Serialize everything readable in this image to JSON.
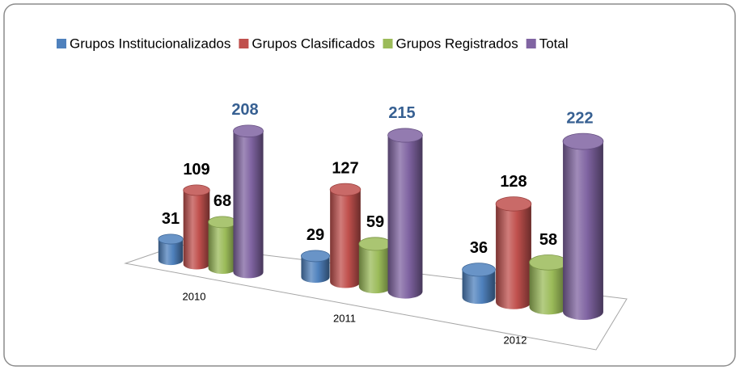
{
  "chart_data": {
    "type": "bar3d",
    "categories": [
      "2010",
      "2011",
      "2012"
    ],
    "series": [
      {
        "name": "Grupos Institucionalizados",
        "color": "#4f81bd",
        "values": [
          31,
          29,
          36
        ]
      },
      {
        "name": "Grupos Clasificados",
        "color": "#c0504d",
        "values": [
          109,
          127,
          128
        ]
      },
      {
        "name": "Grupos Registrados",
        "color": "#9bbb59",
        "values": [
          68,
          59,
          58
        ]
      },
      {
        "name": "Total",
        "color": "#8064a2",
        "values": [
          208,
          215,
          222
        ]
      }
    ],
    "legend": "top"
  }
}
